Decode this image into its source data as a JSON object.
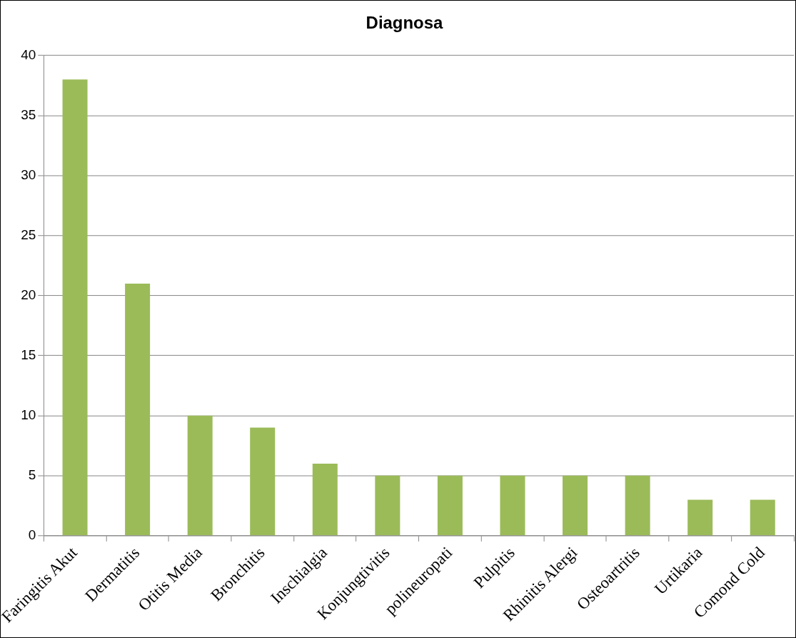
{
  "chart_data": {
    "type": "bar",
    "title": "Diagnosa",
    "categories": [
      "Faringitis Akut",
      "Dermatitis",
      "Otitis Media",
      "Bronchitis",
      "Inschialgia",
      "Konjungtivitis",
      "polineuropati",
      "Pulpitis",
      "Rhinitis Alergi",
      "Osteoartritis",
      "Urtikaria",
      "Comond Cold"
    ],
    "values": [
      38,
      21,
      10,
      9,
      6,
      5,
      5,
      5,
      5,
      5,
      3,
      3
    ],
    "color": "#9bbb59",
    "ylim": [
      0,
      40
    ],
    "yticks": [
      0,
      5,
      10,
      15,
      20,
      25,
      30,
      35,
      40
    ],
    "grid": "y",
    "legend": false
  }
}
